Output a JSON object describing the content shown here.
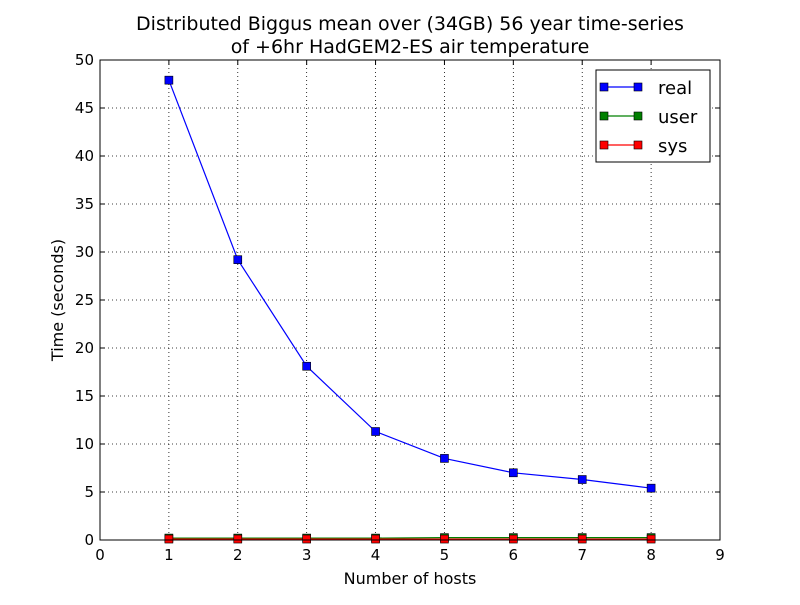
{
  "chart_data": {
    "type": "line",
    "title": [
      "Distributed Biggus mean over (34GB) 56 year time-series",
      "of +6hr HadGEM2-ES air temperature"
    ],
    "xlabel": "Number of hosts",
    "ylabel": "Time (seconds)",
    "xlim": [
      0,
      9
    ],
    "ylim": [
      0,
      50
    ],
    "xticks": [
      0,
      1,
      2,
      3,
      4,
      5,
      6,
      7,
      8,
      9
    ],
    "yticks": [
      0,
      5,
      10,
      15,
      20,
      25,
      30,
      35,
      40,
      45,
      50
    ],
    "grid": true,
    "legend_position": "top-right",
    "x": [
      1,
      2,
      3,
      4,
      5,
      6,
      7,
      8
    ],
    "series": [
      {
        "name": "real",
        "color": "#0000ff",
        "marker": "square",
        "values": [
          47.9,
          29.2,
          18.1,
          11.3,
          8.5,
          7.0,
          6.3,
          5.4
        ]
      },
      {
        "name": "user",
        "color": "#008000",
        "marker": "square",
        "values": [
          0.2,
          0.2,
          0.2,
          0.2,
          0.25,
          0.25,
          0.25,
          0.25
        ]
      },
      {
        "name": "sys",
        "color": "#ff0000",
        "marker": "square",
        "values": [
          0.1,
          0.1,
          0.1,
          0.1,
          0.1,
          0.1,
          0.1,
          0.1
        ]
      }
    ]
  }
}
